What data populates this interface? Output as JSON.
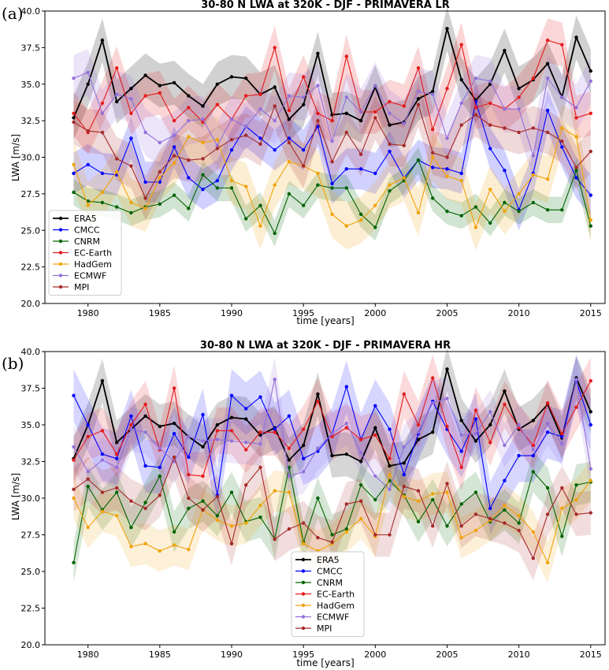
{
  "panels": [
    {
      "label": "(a)"
    },
    {
      "label": "(b)"
    }
  ],
  "chart_data": [
    {
      "type": "line",
      "title": "30-80 N LWA at 320K - DJF - PRIMAVERA LR",
      "xlabel": "time [years]",
      "ylabel": "LWA [m/s]",
      "xlim": [
        1977,
        2016
      ],
      "ylim": [
        20.0,
        40.0
      ],
      "xticks": [
        1980,
        1985,
        1990,
        1995,
        2000,
        2005,
        2010,
        2015
      ],
      "yticks": [
        "20.0",
        "22.5",
        "25.0",
        "27.5",
        "30.0",
        "32.5",
        "35.0",
        "37.5",
        "40.0"
      ],
      "grid": false,
      "legend_position": "lower-left",
      "x": [
        1979,
        1980,
        1981,
        1982,
        1983,
        1984,
        1985,
        1986,
        1987,
        1988,
        1989,
        1990,
        1991,
        1992,
        1993,
        1994,
        1995,
        1996,
        1997,
        1998,
        1999,
        2000,
        2001,
        2002,
        2003,
        2004,
        2005,
        2006,
        2007,
        2008,
        2009,
        2010,
        2011,
        2012,
        2013,
        2014,
        2015
      ],
      "series": [
        {
          "name": "ERA5",
          "color": "#000000",
          "spread": 1.5,
          "values": [
            32.7,
            35.0,
            38.0,
            33.8,
            34.7,
            35.6,
            34.9,
            35.1,
            34.2,
            33.5,
            35.0,
            35.5,
            35.4,
            34.3,
            34.8,
            32.6,
            33.6,
            37.1,
            32.9,
            33.0,
            32.5,
            34.8,
            32.2,
            32.4,
            34.0,
            34.5,
            38.8,
            35.3,
            33.9,
            35.0,
            37.3,
            34.7,
            35.3,
            36.4,
            34.1,
            38.2,
            35.9
          ]
        },
        {
          "name": "CMCC",
          "color": "#0000ff",
          "spread": 1.4,
          "values": [
            28.9,
            29.5,
            28.9,
            28.8,
            31.3,
            28.3,
            28.3,
            30.7,
            28.6,
            27.8,
            28.4,
            30.5,
            32.1,
            31.3,
            30.5,
            31.3,
            30.5,
            32.1,
            28.2,
            29.2,
            29.2,
            28.9,
            30.4,
            28.6,
            29.8,
            29.3,
            29.2,
            28.9,
            33.8,
            30.6,
            29.1,
            26.4,
            28.9,
            33.2,
            30.7,
            28.6,
            27.4
          ]
        },
        {
          "name": "CNRM",
          "color": "#006400",
          "spread": 0.9,
          "values": [
            27.6,
            27.0,
            26.9,
            26.6,
            26.2,
            26.6,
            26.8,
            27.4,
            26.5,
            28.8,
            27.9,
            27.9,
            25.8,
            26.7,
            24.8,
            27.5,
            26.7,
            28.1,
            27.9,
            27.9,
            26.1,
            25.2,
            27.7,
            28.4,
            29.8,
            27.2,
            26.3,
            26.0,
            26.6,
            25.5,
            26.9,
            26.3,
            26.9,
            26.4,
            26.4,
            29.1,
            25.3
          ]
        },
        {
          "name": "EC-Earth",
          "color": "#e41a1c",
          "spread": 1.5,
          "values": [
            33.0,
            31.7,
            33.7,
            36.1,
            33.0,
            34.2,
            34.4,
            32.5,
            33.4,
            32.4,
            33.6,
            32.6,
            34.2,
            34.3,
            37.5,
            33.2,
            35.5,
            33.0,
            32.5,
            36.9,
            33.1,
            33.1,
            33.8,
            33.5,
            36.1,
            31.9,
            34.7,
            37.7,
            33.4,
            33.7,
            33.3,
            34.1,
            35.4,
            38.0,
            37.7,
            32.7,
            33.0
          ]
        },
        {
          "name": "HadGem",
          "color": "#f0a30a",
          "spread": 1.6,
          "values": [
            29.5,
            26.7,
            27.6,
            29.0,
            26.9,
            26.5,
            28.6,
            29.6,
            31.4,
            31.0,
            31.2,
            28.4,
            28.0,
            25.3,
            28.1,
            29.7,
            29.4,
            28.9,
            26.1,
            25.3,
            25.7,
            26.7,
            28.1,
            28.6,
            26.2,
            30.0,
            28.7,
            28.4,
            25.2,
            27.8,
            26.3,
            27.5,
            28.8,
            28.5,
            32.0,
            31.4,
            25.7
          ]
        },
        {
          "name": "ECMWF",
          "color": "#9370db",
          "spread": 1.6,
          "values": [
            35.4,
            35.8,
            33.0,
            34.3,
            34.0,
            31.7,
            31.0,
            31.5,
            32.5,
            32.6,
            30.8,
            32.6,
            32.1,
            33.3,
            32.5,
            34.2,
            34.1,
            34.9,
            31.1,
            34.1,
            33.1,
            34.9,
            33.0,
            32.3,
            34.5,
            34.3,
            31.3,
            33.7,
            35.4,
            35.2,
            33.3,
            33.3,
            30.1,
            35.4,
            34.1,
            33.4,
            35.2
          ]
        },
        {
          "name": "MPI",
          "color": "#a52a2a",
          "spread": 1.5,
          "values": [
            32.4,
            31.8,
            31.7,
            29.9,
            29.4,
            27.2,
            29.0,
            30.1,
            29.8,
            29.9,
            30.6,
            31.2,
            31.5,
            30.9,
            33.5,
            31.0,
            29.4,
            32.5,
            29.7,
            31.7,
            30.2,
            32.7,
            30.9,
            30.8,
            33.6,
            30.3,
            30.0,
            32.2,
            32.9,
            32.2,
            32.0,
            31.7,
            32.0,
            31.7,
            31.1,
            29.3,
            30.4
          ]
        }
      ]
    },
    {
      "type": "line",
      "title": "30-80 N LWA at 320K - DJF - PRIMAVERA HR",
      "xlabel": "time [years]",
      "ylabel": "LWA [m/s]",
      "xlim": [
        1977,
        2016
      ],
      "ylim": [
        20.0,
        40.0
      ],
      "xticks": [
        1980,
        1985,
        1990,
        1995,
        2000,
        2005,
        2010,
        2015
      ],
      "yticks": [
        "20.0",
        "22.5",
        "25.0",
        "27.5",
        "30.0",
        "32.5",
        "35.0",
        "37.5",
        "40.0"
      ],
      "grid": false,
      "legend_position": "lower-center",
      "x": [
        1979,
        1980,
        1981,
        1982,
        1983,
        1984,
        1985,
        1986,
        1987,
        1988,
        1989,
        1990,
        1991,
        1992,
        1993,
        1994,
        1995,
        1996,
        1997,
        1998,
        1999,
        2000,
        2001,
        2002,
        2003,
        2004,
        2005,
        2006,
        2007,
        2008,
        2009,
        2010,
        2011,
        2012,
        2013,
        2014,
        2015
      ],
      "series": [
        {
          "name": "ERA5",
          "color": "#000000",
          "spread": 1.5,
          "values": [
            32.7,
            35.0,
            38.0,
            33.8,
            34.7,
            35.6,
            34.9,
            35.1,
            34.2,
            33.5,
            35.0,
            35.5,
            35.4,
            34.3,
            34.8,
            32.6,
            33.6,
            37.1,
            32.9,
            33.0,
            32.5,
            34.8,
            32.2,
            32.4,
            34.0,
            34.5,
            38.8,
            35.3,
            33.9,
            35.0,
            37.3,
            34.7,
            35.3,
            36.4,
            34.1,
            38.2,
            35.9
          ]
        },
        {
          "name": "CMCC",
          "color": "#0000ff",
          "spread": 1.8,
          "values": [
            37.0,
            35.0,
            33.0,
            32.7,
            35.6,
            32.2,
            32.1,
            34.4,
            32.8,
            35.7,
            30.2,
            37.0,
            36.1,
            36.9,
            34.7,
            35.6,
            32.7,
            33.2,
            34.4,
            37.6,
            34.0,
            36.3,
            34.7,
            31.6,
            34.4,
            36.6,
            34.7,
            33.2,
            35.4,
            29.3,
            31.2,
            32.9,
            32.9,
            34.5,
            34.2,
            38.0,
            35.0
          ]
        },
        {
          "name": "CNRM",
          "color": "#006400",
          "spread": 1.4,
          "values": [
            25.6,
            30.8,
            29.2,
            30.4,
            28.0,
            29.7,
            31.5,
            27.7,
            29.3,
            29.8,
            28.8,
            30.4,
            28.4,
            28.7,
            27.2,
            32.1,
            27.0,
            30.0,
            27.5,
            27.9,
            30.9,
            29.9,
            31.2,
            30.2,
            28.4,
            29.9,
            28.1,
            29.6,
            30.4,
            28.4,
            29.2,
            28.3,
            31.8,
            30.7,
            27.4,
            30.9,
            31.1
          ]
        },
        {
          "name": "EC-Earth",
          "color": "#e41a1c",
          "spread": 1.6,
          "values": [
            32.6,
            34.2,
            34.6,
            33.0,
            35.0,
            36.4,
            33.3,
            37.5,
            31.6,
            31.5,
            34.6,
            34.6,
            33.3,
            34.5,
            34.5,
            33.4,
            34.7,
            36.6,
            34.2,
            34.8,
            34.0,
            34.3,
            32.7,
            37.1,
            35.0,
            38.2,
            34.9,
            32.1,
            36.0,
            33.8,
            36.4,
            34.8,
            33.6,
            36.5,
            34.4,
            36.2,
            38.0
          ]
        },
        {
          "name": "HadGem",
          "color": "#f0a30a",
          "spread": 1.4,
          "values": [
            30.0,
            28.0,
            29.1,
            28.8,
            26.7,
            26.9,
            26.4,
            26.8,
            26.5,
            29.2,
            28.5,
            28.1,
            28.3,
            29.5,
            30.5,
            30.4,
            26.9,
            26.4,
            26.9,
            27.7,
            28.6,
            27.4,
            31.6,
            30.1,
            29.8,
            30.3,
            30.4,
            27.3,
            27.8,
            28.5,
            29.5,
            28.8,
            27.7,
            25.6,
            29.3,
            29.9,
            31.2
          ]
        },
        {
          "name": "ECMWF",
          "color": "#9370db",
          "spread": 1.5,
          "values": [
            33.5,
            31.8,
            32.6,
            32.1,
            34.7,
            34.5,
            33.4,
            32.5,
            34.2,
            33.9,
            34.0,
            33.9,
            33.8,
            33.7,
            38.1,
            31.5,
            31.8,
            33.4,
            34.4,
            35.1,
            33.1,
            31.5,
            30.6,
            33.5,
            34.5,
            36.5,
            36.8,
            34.3,
            34.4,
            35.9,
            33.6,
            35.0,
            33.3,
            35.1,
            33.7,
            38.1,
            32.0
          ]
        },
        {
          "name": "MPI",
          "color": "#a52a2a",
          "spread": 1.5,
          "values": [
            30.6,
            31.3,
            30.4,
            30.7,
            29.8,
            29.3,
            30.2,
            32.8,
            30.0,
            29.2,
            30.1,
            26.9,
            30.9,
            32.1,
            27.2,
            27.9,
            28.3,
            27.3,
            27.0,
            29.6,
            29.8,
            27.5,
            27.5,
            30.8,
            30.5,
            28.1,
            31.0,
            28.1,
            28.9,
            28.6,
            28.3,
            27.8,
            25.9,
            28.9,
            30.7,
            28.9,
            29.0
          ]
        }
      ]
    }
  ]
}
